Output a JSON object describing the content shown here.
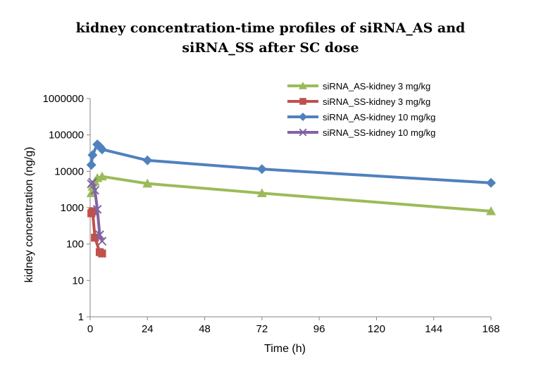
{
  "chart_data": {
    "type": "line",
    "title": "kidney concentration-time profiles of siRNA_AS and siRNA_SS after SC dose",
    "title_lines": [
      "kidney concentration-time profiles of siRNA_AS and",
      "siRNA_SS after SC dose"
    ],
    "xlabel": "Time (h)",
    "ylabel": "kidney concentration (ng/g)",
    "xlim": [
      0,
      168
    ],
    "ylim": [
      1,
      1000000
    ],
    "y_scale": "log",
    "x_ticks": [
      0,
      24,
      48,
      72,
      96,
      120,
      144,
      168
    ],
    "x_tick_labels": [
      "0",
      "24",
      "48",
      "72",
      "96",
      "120",
      "144",
      "168"
    ],
    "y_ticks": [
      1,
      10,
      100,
      1000,
      10000,
      100000,
      1000000
    ],
    "y_tick_labels": [
      "1",
      "10",
      "100",
      "1000",
      "10000",
      "100000",
      "1000000"
    ],
    "grid": false,
    "legend_position": "top-right",
    "series": [
      {
        "name": "siRNA_AS-kidney 3 mg/kg",
        "color": "#9BBB59",
        "marker": "triangle",
        "x": [
          0.5,
          1,
          2,
          3,
          5,
          24,
          72,
          168
        ],
        "y": [
          2500,
          3800,
          5200,
          6500,
          7200,
          4600,
          2500,
          800
        ]
      },
      {
        "name": "siRNA_SS-kidney 3 mg/kg",
        "color": "#C0504D",
        "marker": "square",
        "x": [
          0.5,
          1,
          2,
          4,
          5
        ],
        "y": [
          700,
          800,
          150,
          60,
          55
        ]
      },
      {
        "name": "siRNA_AS-kidney 10 mg/kg",
        "color": "#4F81BD",
        "marker": "diamond",
        "x": [
          0.5,
          1,
          3,
          4,
          5,
          24,
          72,
          168
        ],
        "y": [
          15000,
          28000,
          55000,
          48000,
          40000,
          20000,
          11500,
          4800
        ]
      },
      {
        "name": "siRNA_SS-kidney 10 mg/kg",
        "color": "#8064A2",
        "marker": "x",
        "x": [
          0.5,
          1,
          2,
          3,
          4,
          5
        ],
        "y": [
          4500,
          5000,
          3000,
          900,
          180,
          120
        ]
      }
    ]
  }
}
